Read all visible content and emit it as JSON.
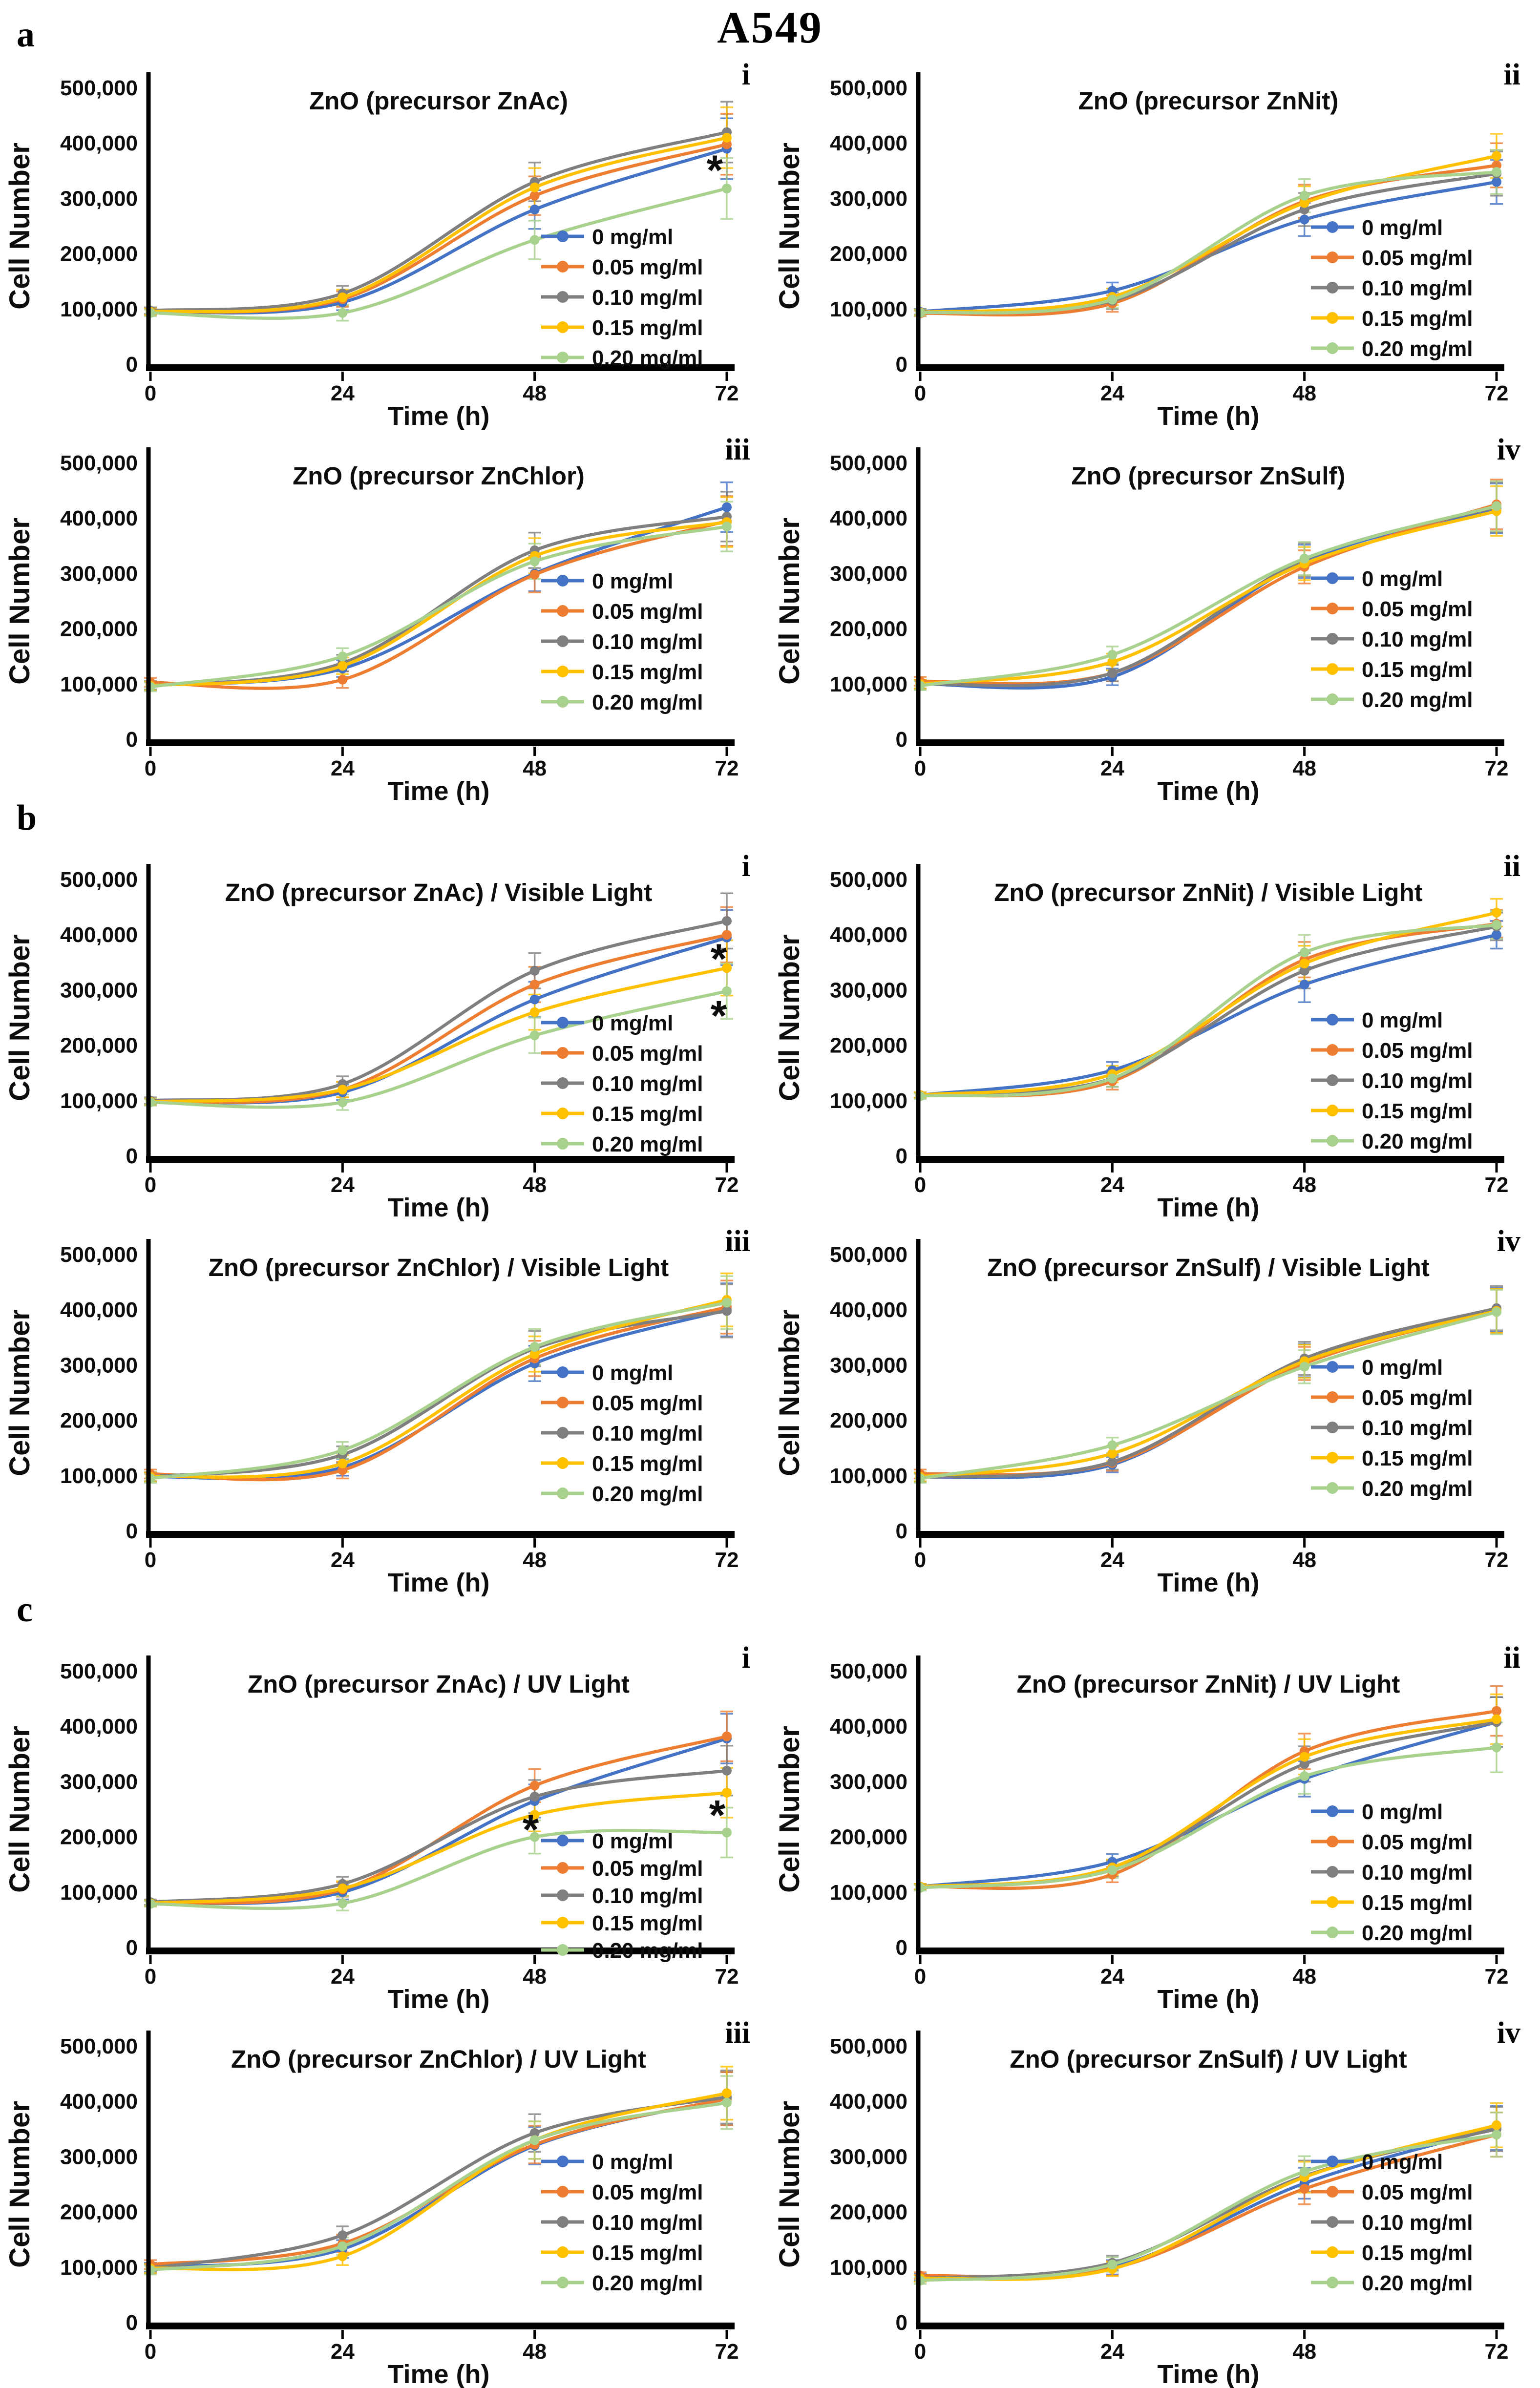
{
  "page": {
    "title": "A549"
  },
  "section_labels": [
    "a",
    "b",
    "c"
  ],
  "axis": {
    "ylabel": "Cell Number",
    "xlabel": "Time (h)",
    "yticks": [
      "0",
      "100,000",
      "200,000",
      "300,000",
      "400,000",
      "500,000"
    ],
    "xticks": [
      "0",
      "24",
      "48",
      "72"
    ],
    "ymax": 500000
  },
  "chart_data": {
    "type": "line",
    "x": [
      0,
      24,
      48,
      72
    ],
    "series_labels": [
      "0  mg/ml",
      "0.05 mg/ml",
      "0.10 mg/ml",
      "0.15 mg/ml",
      "0.20 mg/ml"
    ],
    "colors": [
      "#4472C4",
      "#ED7D31",
      "#7F7F7F",
      "#FFC000",
      "#A9D18E"
    ],
    "xlabel": "Time (h)",
    "ylabel": "Cell Number",
    "ylim": [
      0,
      500000
    ],
    "charts": [
      {
        "section": "a",
        "numeral": "i",
        "title": "ZnO (precursor ZnAc)",
        "series": [
          [
            95000,
            112000,
            280000,
            390000
          ],
          [
            95000,
            118000,
            305000,
            398000
          ],
          [
            97000,
            128000,
            330000,
            420000
          ],
          [
            95000,
            121000,
            320000,
            410000
          ],
          [
            93000,
            93000,
            225000,
            318000
          ]
        ],
        "errors": [
          6000,
          14000,
          35000,
          55000
        ],
        "asterisks": [
          {
            "x": 70.5,
            "y": 350000
          }
        ]
      },
      {
        "section": "a",
        "numeral": "ii",
        "title": "ZnO (precursor ZnNit)",
        "series": [
          [
            95000,
            133000,
            262000,
            330000
          ],
          [
            92000,
            110000,
            295000,
            360000
          ],
          [
            94000,
            115000,
            280000,
            345000
          ],
          [
            94000,
            122000,
            292000,
            377000
          ],
          [
            93000,
            117000,
            305000,
            348000
          ]
        ],
        "errors": [
          5000,
          15000,
          30000,
          40000
        ],
        "asterisks": []
      },
      {
        "section": "a",
        "numeral": "iii",
        "title": "ZnO (precursor ZnChlor)",
        "series": [
          [
            98000,
            128000,
            300000,
            420000
          ],
          [
            103000,
            108000,
            298000,
            395000
          ],
          [
            97000,
            138000,
            342000,
            403000
          ],
          [
            97000,
            133000,
            332000,
            393000
          ],
          [
            95000,
            150000,
            322000,
            385000
          ]
        ],
        "errors": [
          8000,
          15000,
          32000,
          45000
        ],
        "asterisks": []
      },
      {
        "section": "a",
        "numeral": "iv",
        "title": "ZnO (precursor ZnSulf)",
        "series": [
          [
            100000,
            113000,
            322000,
            418000
          ],
          [
            105000,
            120000,
            312000,
            425000
          ],
          [
            100000,
            120000,
            325000,
            420000
          ],
          [
            100000,
            140000,
            318000,
            413000
          ],
          [
            97000,
            153000,
            327000,
            422000
          ]
        ],
        "errors": [
          8000,
          15000,
          30000,
          45000
        ],
        "asterisks": []
      },
      {
        "section": "b",
        "numeral": "i",
        "title": "ZnO (precursor ZnAc) / Visible Light",
        "series": [
          [
            98000,
            115000,
            283000,
            395000
          ],
          [
            98000,
            120000,
            310000,
            400000
          ],
          [
            100000,
            130000,
            335000,
            425000
          ],
          [
            98000,
            120000,
            260000,
            340000
          ],
          [
            97000,
            97000,
            218000,
            298000
          ]
        ],
        "errors": [
          6000,
          14000,
          32000,
          50000
        ],
        "asterisks": [
          {
            "x": 71,
            "y": 355000
          },
          {
            "x": 71,
            "y": 252000
          }
        ]
      },
      {
        "section": "b",
        "numeral": "ii",
        "title": "ZnO (precursor ZnNit) / Visible Light",
        "series": [
          [
            110000,
            155000,
            310000,
            400000
          ],
          [
            110000,
            135000,
            355000,
            420000
          ],
          [
            110000,
            140000,
            335000,
            415000
          ],
          [
            110000,
            148000,
            348000,
            440000
          ],
          [
            108000,
            140000,
            368000,
            418000
          ]
        ],
        "errors": [
          5000,
          15000,
          32000,
          25000
        ],
        "asterisks": []
      },
      {
        "section": "b",
        "numeral": "iii",
        "title": "ZnO (precursor ZnChlor) / Visible Light",
        "series": [
          [
            98000,
            115000,
            303000,
            400000
          ],
          [
            103000,
            110000,
            312000,
            405000
          ],
          [
            98000,
            138000,
            330000,
            398000
          ],
          [
            98000,
            122000,
            320000,
            418000
          ],
          [
            95000,
            146000,
            333000,
            413000
          ]
        ],
        "errors": [
          8000,
          15000,
          32000,
          48000
        ],
        "asterisks": []
      },
      {
        "section": "b",
        "numeral": "iv",
        "title": "ZnO (precursor ZnSulf) / Visible Light",
        "series": [
          [
            97000,
            120000,
            308000,
            400000
          ],
          [
            103000,
            123000,
            303000,
            398000
          ],
          [
            97000,
            125000,
            312000,
            403000
          ],
          [
            98000,
            140000,
            307000,
            398000
          ],
          [
            95000,
            155000,
            297000,
            396000
          ]
        ],
        "errors": [
          8000,
          14000,
          30000,
          40000
        ],
        "asterisks": []
      },
      {
        "section": "c",
        "numeral": "i",
        "title": "ZnO (precursor ZnAc) / UV Light",
        "series": [
          [
            80000,
            100000,
            265000,
            378000
          ],
          [
            80000,
            105000,
            293000,
            382000
          ],
          [
            82000,
            115000,
            273000,
            320000
          ],
          [
            80000,
            107000,
            240000,
            280000
          ],
          [
            79000,
            80000,
            200000,
            208000
          ]
        ],
        "errors": [
          5000,
          13000,
          30000,
          45000
        ],
        "asterisks": [
          {
            "x": 47.5,
            "y": 212000
          },
          {
            "x": 70.8,
            "y": 238000
          }
        ]
      },
      {
        "section": "c",
        "numeral": "ii",
        "title": "ZnO (precursor ZnNit) / UV Light",
        "series": [
          [
            110000,
            155000,
            305000,
            408000
          ],
          [
            110000,
            132000,
            355000,
            428000
          ],
          [
            110000,
            143000,
            332000,
            408000
          ],
          [
            110000,
            145000,
            345000,
            413000
          ],
          [
            108000,
            140000,
            310000,
            362000
          ]
        ],
        "errors": [
          5000,
          14000,
          32000,
          45000
        ],
        "asterisks": []
      },
      {
        "section": "c",
        "numeral": "iii",
        "title": "ZnO (precursor ZnChlor) / UV Light",
        "series": [
          [
            100000,
            133000,
            320000,
            405000
          ],
          [
            105000,
            143000,
            322000,
            405000
          ],
          [
            98000,
            158000,
            343000,
            408000
          ],
          [
            98000,
            120000,
            330000,
            415000
          ],
          [
            95000,
            138000,
            330000,
            398000
          ]
        ],
        "errors": [
          8000,
          16000,
          34000,
          48000
        ],
        "asterisks": []
      },
      {
        "section": "c",
        "numeral": "iv",
        "title": "ZnO (precursor ZnSulf) / UV Light",
        "series": [
          [
            82000,
            100000,
            252000,
            352000
          ],
          [
            85000,
            98000,
            242000,
            340000
          ],
          [
            80000,
            108000,
            265000,
            350000
          ],
          [
            80000,
            97000,
            263000,
            357000
          ],
          [
            76000,
            105000,
            273000,
            340000
          ]
        ],
        "errors": [
          6000,
          13000,
          28000,
          40000
        ],
        "asterisks": []
      }
    ]
  }
}
